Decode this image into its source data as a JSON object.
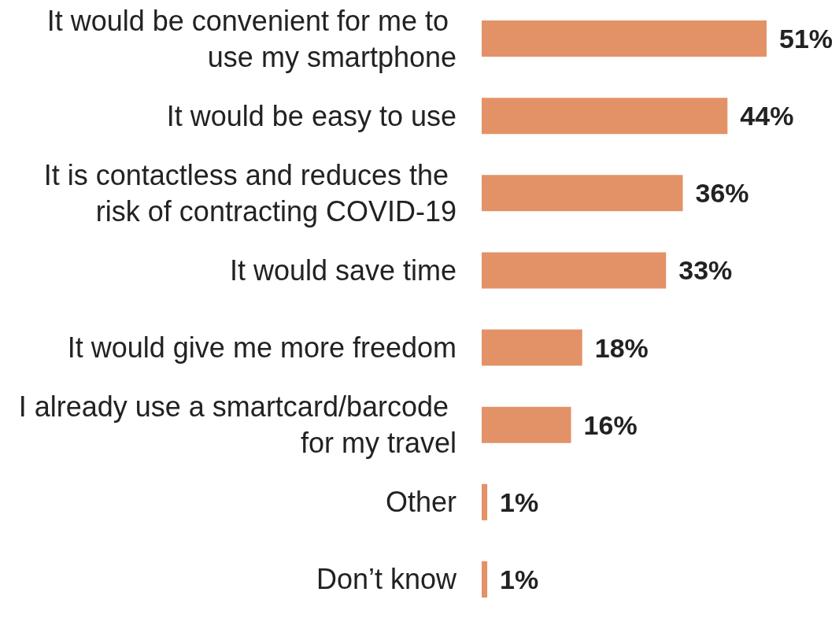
{
  "chart_data": {
    "type": "bar",
    "orientation": "horizontal",
    "categories": [
      "It would be convenient for me to use my smartphone",
      "It would be easy to use",
      "It is contactless and reduces the risk of contracting COVID-19",
      "It would save time",
      "It would give me more freedom",
      "I already use a smartcard/barcode for my travel",
      "Other",
      "Don’t know"
    ],
    "values": [
      51,
      44,
      36,
      33,
      18,
      16,
      1,
      1
    ],
    "value_labels": [
      "51%",
      "44%",
      "36%",
      "33%",
      "18%",
      "16%",
      "1%",
      "1%"
    ],
    "color": "#e39268"
  }
}
